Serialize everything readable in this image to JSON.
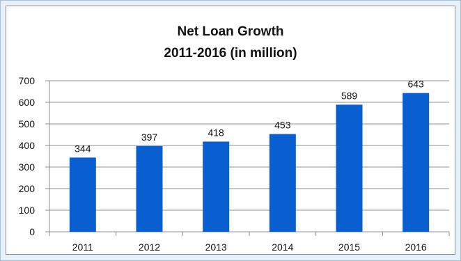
{
  "chart_data": {
    "type": "bar",
    "title": "Net Loan Growth",
    "subtitle": "2011-2016 (in million)",
    "categories": [
      "2011",
      "2012",
      "2013",
      "2014",
      "2015",
      "2016"
    ],
    "values": [
      344,
      397,
      418,
      453,
      589,
      643
    ],
    "ylim": [
      0,
      700
    ],
    "yticks": [
      "0",
      "100",
      "200",
      "300",
      "400",
      "500",
      "600",
      "700"
    ],
    "xlabel": "",
    "ylabel": "",
    "grid": true,
    "legend": "none",
    "bar_color": "#0a5fd0",
    "grid_color": "#8c8c8c"
  }
}
